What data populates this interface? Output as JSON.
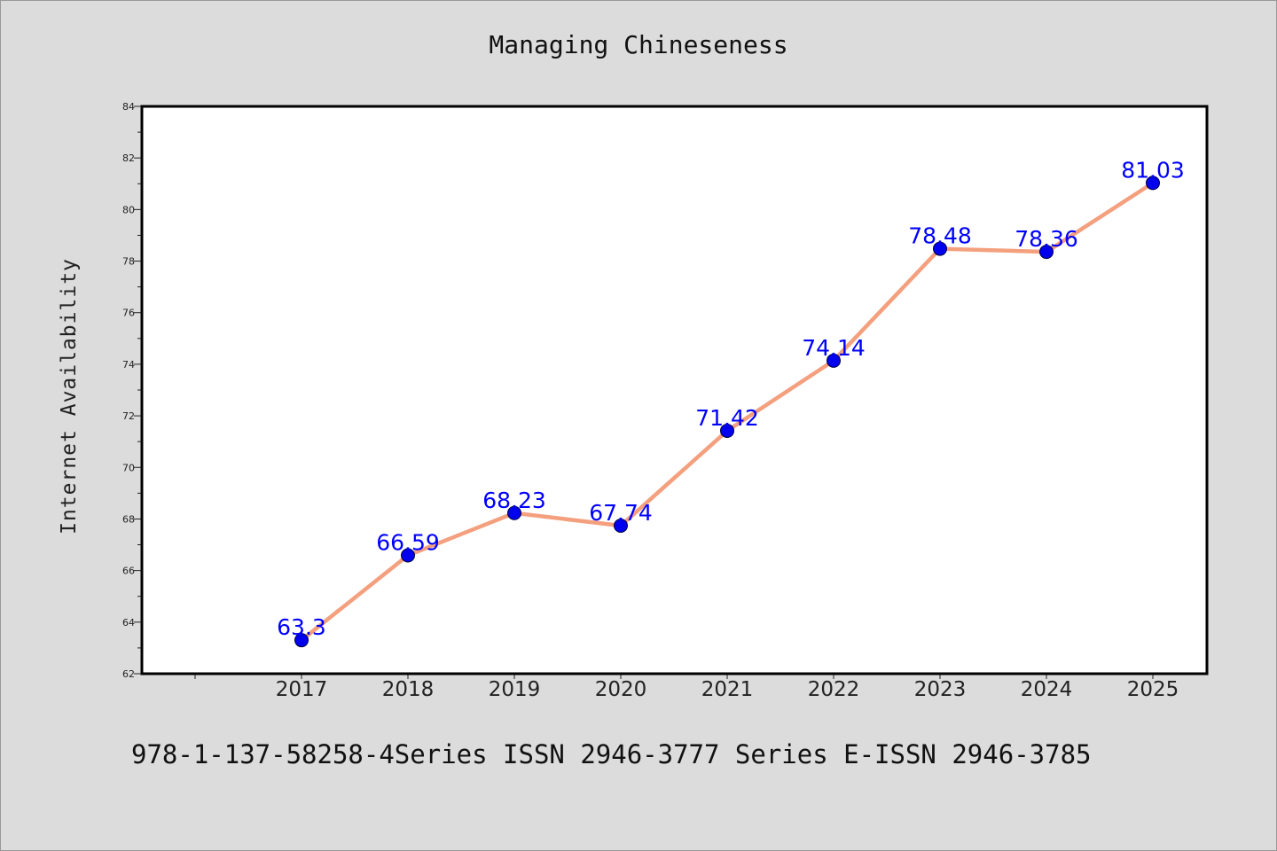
{
  "chart_data": {
    "type": "line",
    "title": "Managing Chineseness",
    "xlabel": "",
    "ylabel": "Internet Availability",
    "categories": [
      "2017",
      "2018",
      "2019",
      "2020",
      "2021",
      "2022",
      "2023",
      "2024",
      "2025"
    ],
    "values": [
      63.3,
      66.59,
      68.23,
      67.74,
      71.42,
      74.14,
      78.48,
      78.36,
      81.03
    ],
    "data_labels": [
      "63.3",
      "66.59",
      "68.23",
      "67.74",
      "71.42",
      "74.14",
      "78.48",
      "78.36",
      "81.03"
    ],
    "ylim": [
      62,
      84
    ],
    "yticks": [
      62,
      64,
      66,
      68,
      70,
      72,
      74,
      76,
      78,
      80,
      82,
      84
    ],
    "grid": false,
    "legend": "none",
    "line_color": "#f4a07e",
    "marker_color": "#0000ee",
    "label_color": "#0000ff"
  },
  "footer": "978-1-137-58258-4Series ISSN 2946-3777 Series E-ISSN 2946-3785"
}
